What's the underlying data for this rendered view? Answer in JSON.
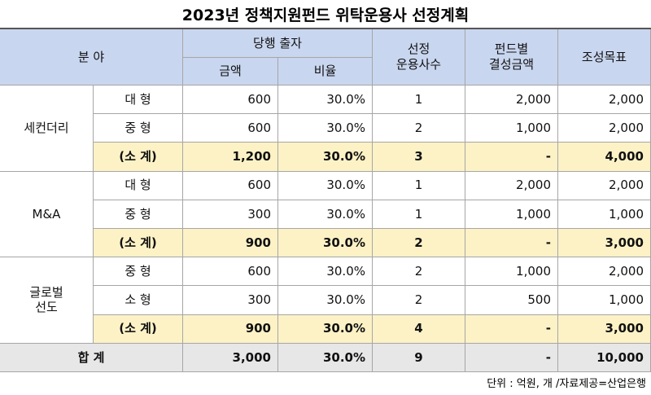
{
  "title": "2023년  정책지원펀드  위탁운용사  선정계획",
  "table": {
    "header": {
      "field": "분    야",
      "investment": "당행  출자",
      "amount": "금액",
      "ratio": "비율",
      "managers": "선정\n운용사수",
      "fund_size": "펀드별\n결성금액",
      "target": "조성목표"
    },
    "groups": [
      {
        "name": "세컨더리",
        "rows": [
          [
            "대  형",
            "600",
            "30.0%",
            "1",
            "2,000",
            "2,000"
          ],
          [
            "중  형",
            "600",
            "30.0%",
            "2",
            "1,000",
            "2,000"
          ],
          [
            "(소  계)",
            "1,200",
            "30.0%",
            "3",
            "-",
            "4,000"
          ]
        ]
      },
      {
        "name": "M&A",
        "rows": [
          [
            "대  형",
            "600",
            "30.0%",
            "1",
            "2,000",
            "2,000"
          ],
          [
            "중  형",
            "300",
            "30.0%",
            "1",
            "1,000",
            "1,000"
          ],
          [
            "(소  계)",
            "900",
            "30.0%",
            "2",
            "-",
            "3,000"
          ]
        ]
      },
      {
        "name": "글로벌\n선도",
        "rows": [
          [
            "중  형",
            "600",
            "30.0%",
            "2",
            "1,000",
            "2,000"
          ],
          [
            "소  형",
            "300",
            "30.0%",
            "2",
            "500",
            "1,000"
          ],
          [
            "(소  계)",
            "900",
            "30.0%",
            "4",
            "-",
            "3,000"
          ]
        ]
      }
    ],
    "total": [
      "합  계",
      "3,000",
      "30.0%",
      "9",
      "-",
      "10,000"
    ]
  },
  "note": "단위 : 억원, 개 /자료제공=산업은행"
}
